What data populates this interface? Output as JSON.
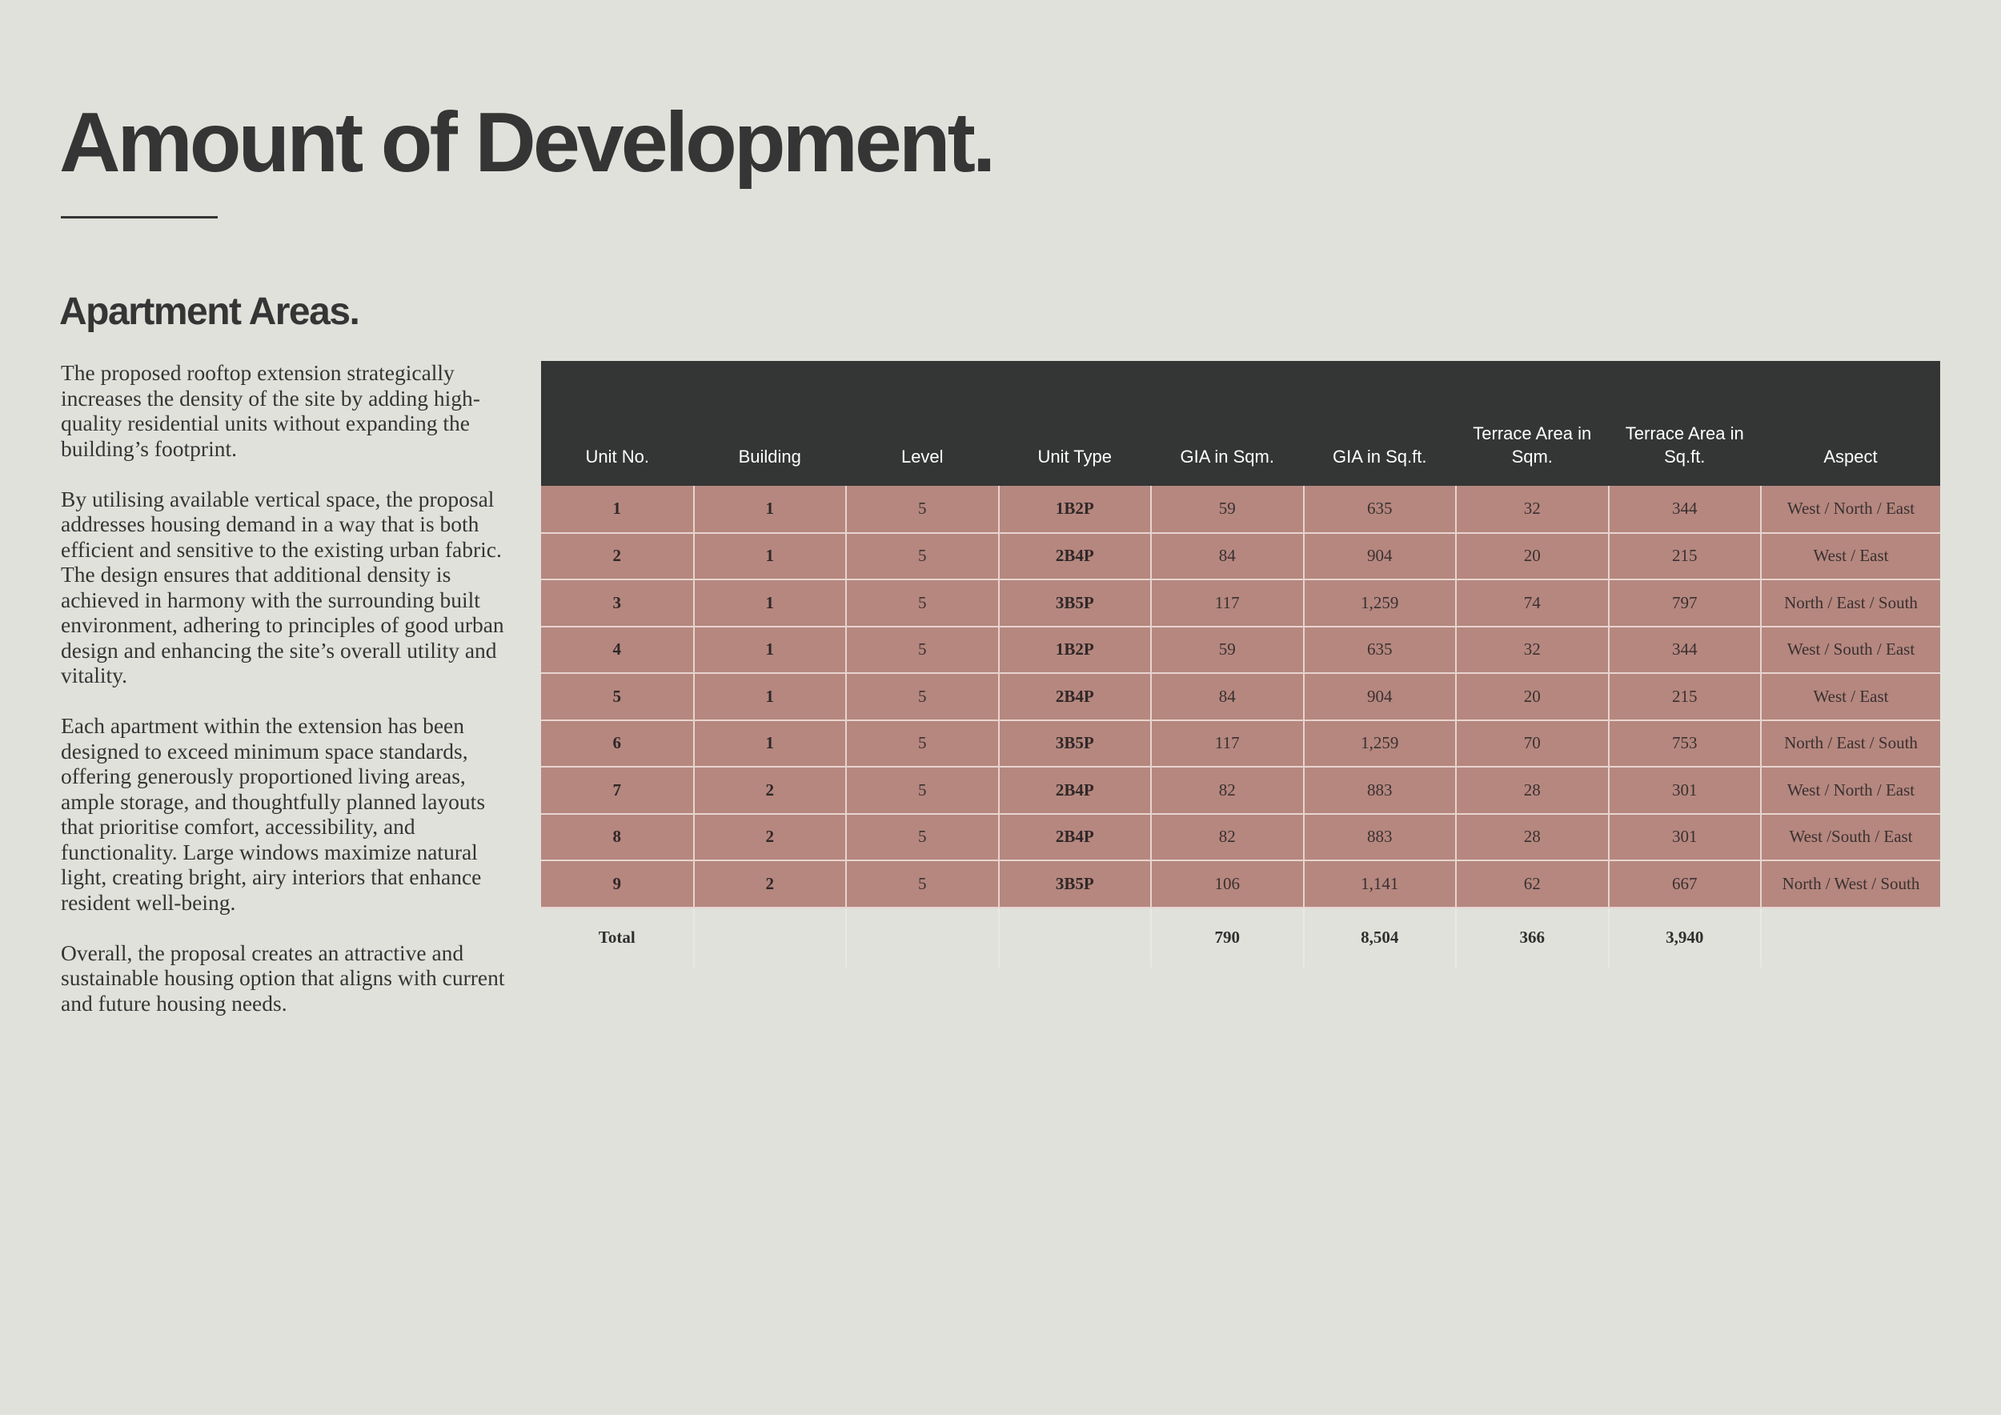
{
  "page": {
    "title": "Amount of Development.",
    "section_heading": "Apartment Areas.",
    "paragraphs": [
      "The proposed rooftop extension strategically increases the density of the site by adding high-quality residential units without expanding the building’s footprint.",
      "By utilising available vertical space, the proposal addresses housing demand in a way that is both efficient and sensitive to the existing urban fabric. The design ensures that additional density is achieved in harmony with the surrounding built environment, adhering to principles of good urban design and enhancing the site’s overall utility and vitality.",
      "Each apartment within the extension has been designed to exceed minimum space standards, offering generously proportioned living areas, ample storage, and thoughtfully planned layouts that prioritise comfort, accessibility, and functionality. Large windows maximize natural light, creating bright, airy interiors that enhance resident well-being.",
      "Overall, the proposal creates an attractive and sustainable housing option that aligns with current and future housing needs."
    ]
  },
  "table": {
    "headers": [
      "Unit No.",
      "Building",
      "Level",
      "Unit Type",
      "GIA in Sqm.",
      "GIA in Sq.ft.",
      "Terrace Area in Sqm.",
      "Terrace Area in Sq.ft.",
      "Aspect"
    ],
    "rows": [
      [
        "1",
        "1",
        "5",
        "1B2P",
        "59",
        "635",
        "32",
        "344",
        "West / North / East"
      ],
      [
        "2",
        "1",
        "5",
        "2B4P",
        "84",
        "904",
        "20",
        "215",
        "West / East"
      ],
      [
        "3",
        "1",
        "5",
        "3B5P",
        "117",
        "1,259",
        "74",
        "797",
        "North / East / South"
      ],
      [
        "4",
        "1",
        "5",
        "1B2P",
        "59",
        "635",
        "32",
        "344",
        "West / South / East"
      ],
      [
        "5",
        "1",
        "5",
        "2B4P",
        "84",
        "904",
        "20",
        "215",
        "West / East"
      ],
      [
        "6",
        "1",
        "5",
        "3B5P",
        "117",
        "1,259",
        "70",
        "753",
        "North / East / South"
      ],
      [
        "7",
        "2",
        "5",
        "2B4P",
        "82",
        "883",
        "28",
        "301",
        "West / North / East"
      ],
      [
        "8",
        "2",
        "5",
        "2B4P",
        "82",
        "883",
        "28",
        "301",
        "West /South / East"
      ],
      [
        "9",
        "2",
        "5",
        "3B5P",
        "106",
        "1,141",
        "62",
        "667",
        "North / West / South"
      ]
    ],
    "total": [
      "Total",
      "",
      "",
      "",
      "790",
      "8,504",
      "366",
      "3,940",
      ""
    ]
  },
  "colors": {
    "background": "#e1e1dc",
    "header_fill": "#343535",
    "row_fill": "#b5877f",
    "text": "#353535"
  }
}
